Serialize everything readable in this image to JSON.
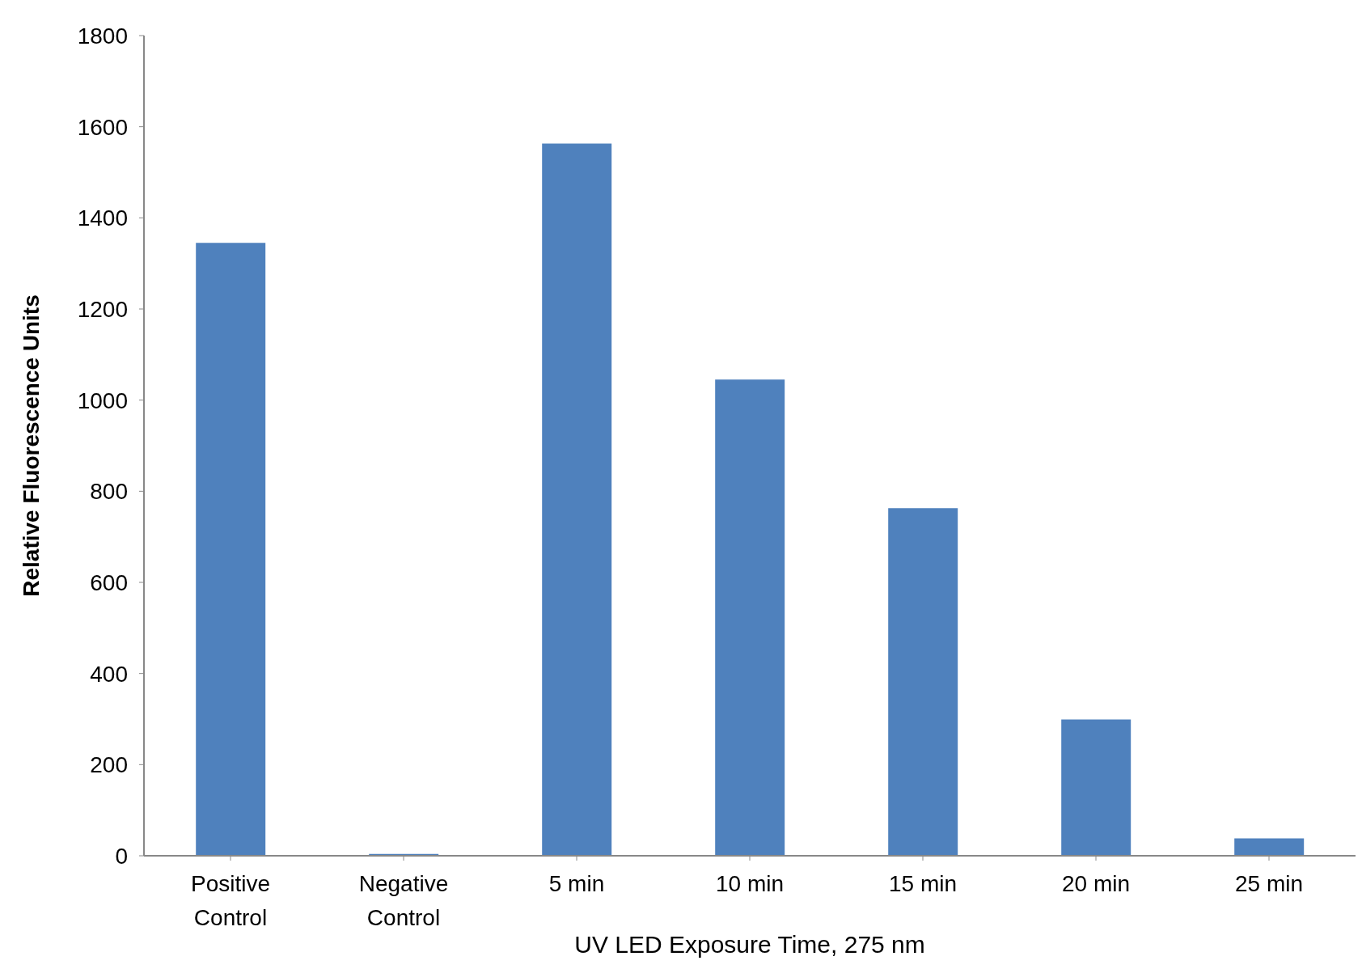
{
  "chart_data": {
    "type": "bar",
    "xlabel": "UV LED Exposure Time, 275 nm",
    "ylabel": "Relative Fluorescence Units",
    "categories": [
      "Positive Control",
      "Negative Control",
      "5 min",
      "10 min",
      "15 min",
      "20 min",
      "25 min"
    ],
    "values": [
      1345,
      4,
      1563,
      1045,
      763,
      299,
      38
    ],
    "color": "#4f81bd",
    "ylim": [
      0,
      1800
    ],
    "yticks": [
      0,
      200,
      400,
      600,
      800,
      1000,
      1200,
      1400,
      1600,
      1800
    ],
    "grid": false
  }
}
